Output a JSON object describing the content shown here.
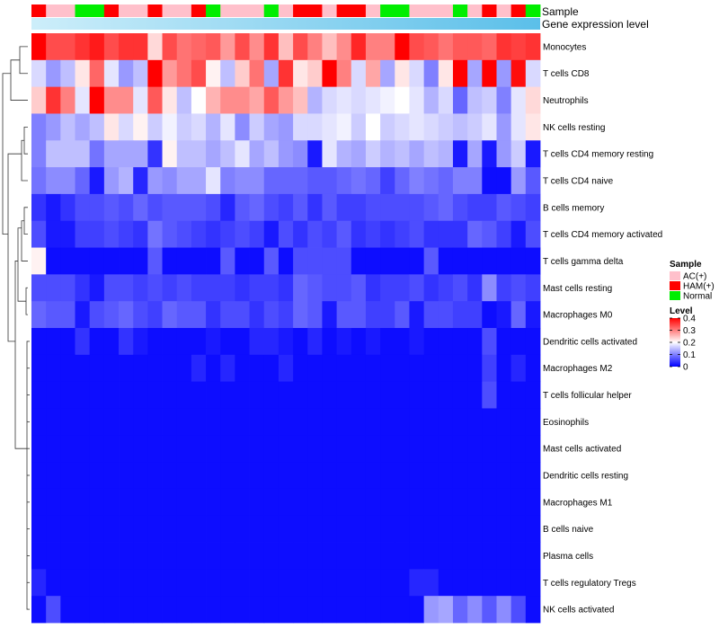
{
  "chart_data": {
    "type": "heatmap",
    "annotation_labels": {
      "sample": "Sample",
      "gene_expression": "Gene expression level"
    },
    "rows": [
      "Monocytes",
      "T cells CD8",
      "Neutrophils",
      "NK cells resting",
      "T cells CD4 memory resting",
      "T cells CD4 naive",
      "B cells memory",
      "T cells CD4 memory activated",
      "T cells gamma delta",
      "Mast cells resting",
      "Macrophages M0",
      "Dendritic cells activated",
      "Macrophages M2",
      "T cells follicular helper",
      "Eosinophils",
      "Mast cells activated",
      "Dendritic cells resting",
      "Macrophages M1",
      "B cells naive",
      "Plasma cells",
      "T cells regulatory  Tregs",
      "NK cells activated"
    ],
    "samples": [
      "HAM(+)",
      "AC(+)",
      "AC(+)",
      "Normal",
      "Normal",
      "HAM(+)",
      "AC(+)",
      "AC(+)",
      "HAM(+)",
      "AC(+)",
      "AC(+)",
      "HAM(+)",
      "Normal",
      "AC(+)",
      "AC(+)",
      "AC(+)",
      "Normal",
      "AC(+)",
      "HAM(+)",
      "HAM(+)",
      "AC(+)",
      "HAM(+)",
      "HAM(+)",
      "AC(+)",
      "Normal",
      "Normal",
      "AC(+)",
      "AC(+)",
      "AC(+)",
      "Normal",
      "AC(+)",
      "HAM(+)",
      "AC(+)",
      "HAM(+)",
      "Normal"
    ],
    "gene_expression_gradient": [
      "#cdeefa",
      "#5bbfe9"
    ],
    "legend": {
      "sample_title": "Sample",
      "sample_entries": [
        {
          "label": "AC(+)",
          "color": "#ffc0cb"
        },
        {
          "label": "HAM(+)",
          "color": "#ff0000"
        },
        {
          "label": "Normal",
          "color": "#00ee00"
        }
      ],
      "level_title": "Level",
      "level_ticks": [
        "0.4",
        "0.3",
        "0.2",
        "0.1",
        "0"
      ],
      "level_tick_values": [
        0.4,
        0.3,
        0.2,
        0.1,
        0
      ]
    },
    "color_scale": {
      "min": 0,
      "mid": 0.2,
      "max": 0.4,
      "low": "#0000ff",
      "midcolor": "#ffffff",
      "high": "#ff0000"
    },
    "values": [
      [
        0.4,
        0.34,
        0.34,
        0.36,
        0.38,
        0.34,
        0.36,
        0.36,
        0.23,
        0.34,
        0.31,
        0.32,
        0.33,
        0.28,
        0.34,
        0.29,
        0.36,
        0.25,
        0.34,
        0.3,
        0.25,
        0.29,
        0.37,
        0.3,
        0.3,
        0.4,
        0.34,
        0.33,
        0.31,
        0.33,
        0.33,
        0.32,
        0.36,
        0.35,
        0.36
      ],
      [
        0.17,
        0.12,
        0.15,
        0.22,
        0.32,
        0.18,
        0.12,
        0.15,
        0.4,
        0.28,
        0.31,
        0.34,
        0.21,
        0.15,
        0.24,
        0.31,
        0.13,
        0.36,
        0.22,
        0.24,
        0.4,
        0.3,
        0.17,
        0.27,
        0.13,
        0.22,
        0.17,
        0.1,
        0.22,
        0.4,
        0.13,
        0.4,
        0.12,
        0.39,
        0.17
      ],
      [
        0.24,
        0.36,
        0.3,
        0.18,
        0.4,
        0.29,
        0.29,
        0.18,
        0.33,
        0.22,
        0.15,
        0.2,
        0.26,
        0.29,
        0.29,
        0.27,
        0.33,
        0.28,
        0.25,
        0.14,
        0.17,
        0.18,
        0.17,
        0.18,
        0.19,
        0.2,
        0.18,
        0.14,
        0.17,
        0.08,
        0.15,
        0.16,
        0.1,
        0.18,
        0.23
      ],
      [
        0.1,
        0.12,
        0.15,
        0.13,
        0.15,
        0.22,
        0.17,
        0.21,
        0.16,
        0.19,
        0.16,
        0.17,
        0.14,
        0.18,
        0.11,
        0.16,
        0.13,
        0.12,
        0.17,
        0.17,
        0.18,
        0.19,
        0.16,
        0.2,
        0.16,
        0.17,
        0.18,
        0.17,
        0.16,
        0.15,
        0.16,
        0.18,
        0.12,
        0.18,
        0.22
      ],
      [
        0.1,
        0.15,
        0.15,
        0.15,
        0.09,
        0.13,
        0.13,
        0.13,
        0.04,
        0.21,
        0.15,
        0.15,
        0.13,
        0.15,
        0.18,
        0.13,
        0.15,
        0.12,
        0.11,
        0.02,
        0.18,
        0.14,
        0.13,
        0.16,
        0.14,
        0.15,
        0.13,
        0.15,
        0.14,
        0.02,
        0.13,
        0.02,
        0.12,
        0.16,
        0.02
      ],
      [
        0.09,
        0.11,
        0.11,
        0.08,
        0.02,
        0.12,
        0.14,
        0.03,
        0.12,
        0.11,
        0.13,
        0.13,
        0.18,
        0.1,
        0.11,
        0.11,
        0.08,
        0.08,
        0.08,
        0.07,
        0.07,
        0.08,
        0.09,
        0.08,
        0.05,
        0.08,
        0.1,
        0.09,
        0.08,
        0.1,
        0.1,
        0.01,
        0.01,
        0.12,
        0.07
      ],
      [
        0.04,
        0.02,
        0.04,
        0.06,
        0.06,
        0.07,
        0.06,
        0.08,
        0.06,
        0.07,
        0.07,
        0.07,
        0.06,
        0.03,
        0.07,
        0.08,
        0.06,
        0.05,
        0.07,
        0.04,
        0.07,
        0.05,
        0.05,
        0.06,
        0.06,
        0.06,
        0.06,
        0.07,
        0.08,
        0.06,
        0.05,
        0.05,
        0.07,
        0.06,
        0.05
      ],
      [
        0.06,
        0.02,
        0.02,
        0.05,
        0.05,
        0.06,
        0.05,
        0.04,
        0.09,
        0.07,
        0.06,
        0.05,
        0.04,
        0.05,
        0.06,
        0.05,
        0.02,
        0.06,
        0.04,
        0.06,
        0.05,
        0.07,
        0.04,
        0.05,
        0.04,
        0.05,
        0.06,
        0.04,
        0.04,
        0.04,
        0.08,
        0.07,
        0.05,
        0.02,
        0.06
      ],
      [
        0.21,
        0.01,
        0.01,
        0.01,
        0.01,
        0.01,
        0.01,
        0.01,
        0.07,
        0.01,
        0.01,
        0.01,
        0.01,
        0.07,
        0.01,
        0.01,
        0.07,
        0.01,
        0.06,
        0.06,
        0.06,
        0.06,
        0.01,
        0.01,
        0.01,
        0.01,
        0.01,
        0.07,
        0.01,
        0.01,
        0.01,
        0.01,
        0.01,
        0.01,
        0.01
      ],
      [
        0.06,
        0.06,
        0.06,
        0.04,
        0.02,
        0.06,
        0.06,
        0.05,
        0.06,
        0.05,
        0.06,
        0.05,
        0.05,
        0.05,
        0.04,
        0.05,
        0.05,
        0.04,
        0.08,
        0.07,
        0.06,
        0.06,
        0.07,
        0.04,
        0.05,
        0.05,
        0.06,
        0.04,
        0.05,
        0.06,
        0.04,
        0.11,
        0.05,
        0.06,
        0.05
      ],
      [
        0.08,
        0.07,
        0.07,
        0.02,
        0.06,
        0.07,
        0.08,
        0.06,
        0.05,
        0.08,
        0.07,
        0.07,
        0.04,
        0.06,
        0.06,
        0.04,
        0.06,
        0.05,
        0.08,
        0.07,
        0.02,
        0.07,
        0.07,
        0.05,
        0.05,
        0.07,
        0.02,
        0.06,
        0.06,
        0.05,
        0.05,
        0.01,
        0.02,
        0.08,
        0.02
      ],
      [
        0.01,
        0.01,
        0.01,
        0.04,
        0.01,
        0.01,
        0.04,
        0.02,
        0.01,
        0.01,
        0.01,
        0.01,
        0.02,
        0.01,
        0.01,
        0.03,
        0.03,
        0.02,
        0.01,
        0.03,
        0.01,
        0.02,
        0.01,
        0.02,
        0.01,
        0.01,
        0.02,
        0.01,
        0.01,
        0.01,
        0.01,
        0.06,
        0.01,
        0.01,
        0.01
      ],
      [
        0.01,
        0.01,
        0.01,
        0.01,
        0.01,
        0.01,
        0.01,
        0.01,
        0.01,
        0.01,
        0.01,
        0.03,
        0.01,
        0.03,
        0.01,
        0.01,
        0.01,
        0.03,
        0.01,
        0.01,
        0.01,
        0.01,
        0.01,
        0.01,
        0.01,
        0.01,
        0.01,
        0.01,
        0.01,
        0.01,
        0.01,
        0.05,
        0.01,
        0.03,
        0.01
      ],
      [
        0.01,
        0.01,
        0.01,
        0.01,
        0.01,
        0.01,
        0.01,
        0.01,
        0.01,
        0.01,
        0.01,
        0.01,
        0.01,
        0.01,
        0.01,
        0.01,
        0.01,
        0.01,
        0.01,
        0.01,
        0.01,
        0.01,
        0.01,
        0.01,
        0.01,
        0.01,
        0.01,
        0.01,
        0.01,
        0.01,
        0.01,
        0.06,
        0.01,
        0.01,
        0.01
      ],
      [
        0.01,
        0.01,
        0.01,
        0.01,
        0.01,
        0.01,
        0.01,
        0.01,
        0.01,
        0.01,
        0.01,
        0.01,
        0.01,
        0.01,
        0.01,
        0.01,
        0.01,
        0.01,
        0.01,
        0.01,
        0.01,
        0.01,
        0.01,
        0.01,
        0.01,
        0.01,
        0.01,
        0.01,
        0.01,
        0.01,
        0.01,
        0.01,
        0.01,
        0.01,
        0.01
      ],
      [
        0.01,
        0.01,
        0.01,
        0.01,
        0.01,
        0.01,
        0.01,
        0.01,
        0.01,
        0.01,
        0.01,
        0.01,
        0.01,
        0.01,
        0.01,
        0.01,
        0.01,
        0.01,
        0.01,
        0.01,
        0.01,
        0.01,
        0.01,
        0.01,
        0.01,
        0.01,
        0.01,
        0.01,
        0.01,
        0.01,
        0.01,
        0.01,
        0.01,
        0.01,
        0.01
      ],
      [
        0.01,
        0.01,
        0.01,
        0.01,
        0.01,
        0.01,
        0.01,
        0.01,
        0.01,
        0.01,
        0.01,
        0.01,
        0.01,
        0.01,
        0.01,
        0.01,
        0.01,
        0.01,
        0.01,
        0.01,
        0.01,
        0.01,
        0.01,
        0.01,
        0.01,
        0.01,
        0.01,
        0.01,
        0.01,
        0.01,
        0.01,
        0.01,
        0.01,
        0.01,
        0.01
      ],
      [
        0.01,
        0.01,
        0.01,
        0.01,
        0.01,
        0.01,
        0.01,
        0.01,
        0.01,
        0.01,
        0.01,
        0.01,
        0.01,
        0.01,
        0.01,
        0.01,
        0.01,
        0.01,
        0.01,
        0.01,
        0.01,
        0.01,
        0.01,
        0.01,
        0.01,
        0.01,
        0.01,
        0.01,
        0.01,
        0.01,
        0.01,
        0.01,
        0.01,
        0.01,
        0.01
      ],
      [
        0.01,
        0.01,
        0.01,
        0.01,
        0.01,
        0.01,
        0.01,
        0.01,
        0.01,
        0.01,
        0.01,
        0.01,
        0.01,
        0.01,
        0.01,
        0.01,
        0.01,
        0.01,
        0.01,
        0.01,
        0.01,
        0.01,
        0.01,
        0.01,
        0.01,
        0.01,
        0.01,
        0.01,
        0.01,
        0.01,
        0.01,
        0.01,
        0.01,
        0.01,
        0.01
      ],
      [
        0.01,
        0.01,
        0.01,
        0.01,
        0.01,
        0.01,
        0.01,
        0.01,
        0.01,
        0.01,
        0.01,
        0.01,
        0.01,
        0.01,
        0.01,
        0.01,
        0.01,
        0.01,
        0.01,
        0.01,
        0.01,
        0.01,
        0.01,
        0.01,
        0.01,
        0.01,
        0.01,
        0.01,
        0.01,
        0.01,
        0.01,
        0.01,
        0.01,
        0.01,
        0.01
      ],
      [
        0.03,
        0.01,
        0.01,
        0.01,
        0.01,
        0.01,
        0.01,
        0.01,
        0.01,
        0.01,
        0.01,
        0.01,
        0.01,
        0.01,
        0.01,
        0.01,
        0.01,
        0.01,
        0.01,
        0.01,
        0.01,
        0.01,
        0.01,
        0.01,
        0.01,
        0.01,
        0.03,
        0.03,
        0.01,
        0.01,
        0.01,
        0.01,
        0.01,
        0.01,
        0.01
      ],
      [
        0.01,
        0.06,
        0.01,
        0.01,
        0.01,
        0.01,
        0.01,
        0.01,
        0.01,
        0.01,
        0.01,
        0.01,
        0.01,
        0.01,
        0.01,
        0.01,
        0.01,
        0.01,
        0.01,
        0.01,
        0.01,
        0.01,
        0.01,
        0.01,
        0.01,
        0.01,
        0.01,
        0.12,
        0.13,
        0.08,
        0.11,
        0.07,
        0.11,
        0.06,
        0.01
      ]
    ]
  }
}
